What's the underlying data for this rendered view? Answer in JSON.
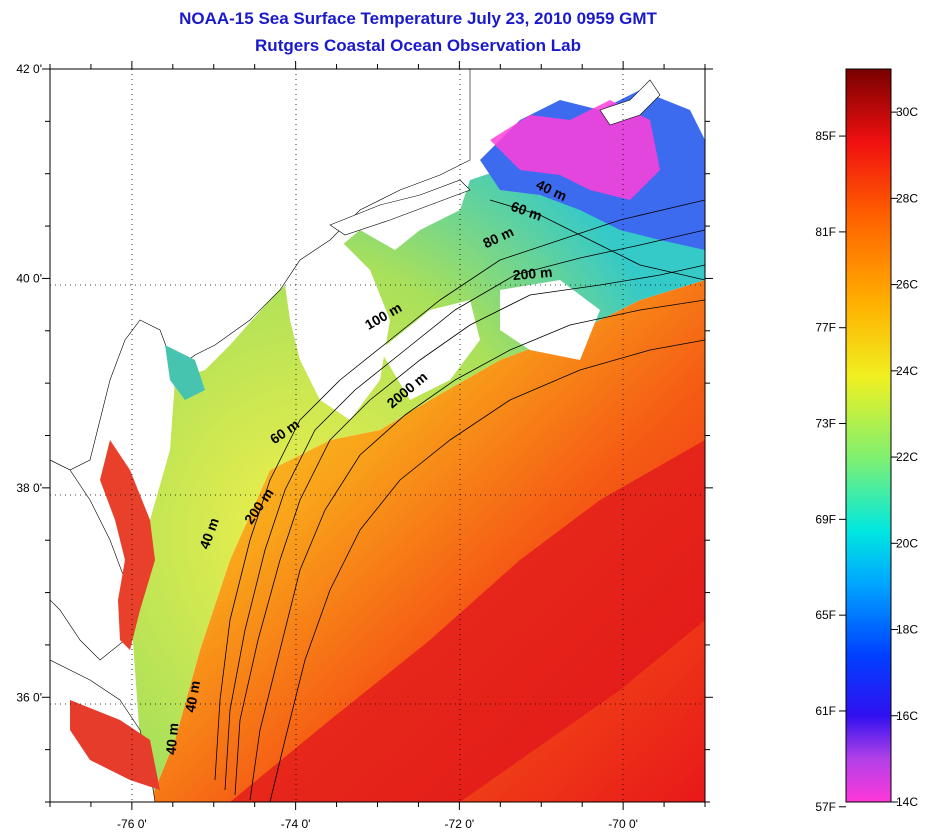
{
  "title": {
    "line1": "NOAA-15 Sea Surface Temperature July 23, 2010 0959 GMT",
    "line2": "Rutgers Coastal Ocean Observation Lab"
  },
  "map": {
    "lon_range": [
      -77,
      -69
    ],
    "lat_range": [
      35,
      42
    ],
    "x_ticks": [
      {
        "value": -76,
        "label": "-76 0'"
      },
      {
        "value": -74,
        "label": "-74 0'"
      },
      {
        "value": -72,
        "label": "-72 0'"
      },
      {
        "value": -70,
        "label": "-70 0'"
      }
    ],
    "y_ticks": [
      {
        "value": 42,
        "label": "42 0'"
      },
      {
        "value": 40,
        "label": "40 0'"
      },
      {
        "value": 38,
        "label": "38 0'"
      },
      {
        "value": 36,
        "label": "36 0'"
      }
    ],
    "grid": "dotted",
    "contour_labels": [
      {
        "text": "40 m",
        "lon": -70.9,
        "lat": 40.8,
        "angle": 25
      },
      {
        "text": "60 m",
        "lon": -71.2,
        "lat": 40.6,
        "angle": 20
      },
      {
        "text": "80 m",
        "lon": -71.5,
        "lat": 40.35,
        "angle": -25
      },
      {
        "text": "200 m",
        "lon": -71.1,
        "lat": 40.0,
        "angle": -5
      },
      {
        "text": "100 m",
        "lon": -72.9,
        "lat": 39.6,
        "angle": -30
      },
      {
        "text": "2000 m",
        "lon": -72.6,
        "lat": 38.9,
        "angle": -40
      },
      {
        "text": "60 m",
        "lon": -74.1,
        "lat": 38.5,
        "angle": -35
      },
      {
        "text": "200 m",
        "lon": -74.4,
        "lat": 37.8,
        "angle": -55
      },
      {
        "text": "40 m",
        "lon": -75.0,
        "lat": 37.55,
        "angle": -70
      },
      {
        "text": "40 m",
        "lon": -75.2,
        "lat": 36.0,
        "angle": -80
      },
      {
        "text": "40 m",
        "lon": -75.45,
        "lat": 35.6,
        "angle": -85
      }
    ]
  },
  "colorbar": {
    "fahrenheit_labels": [
      {
        "value": 85,
        "label": "85F"
      },
      {
        "value": 81,
        "label": "81F"
      },
      {
        "value": 77,
        "label": "77F"
      },
      {
        "value": 73,
        "label": "73F"
      },
      {
        "value": 69,
        "label": "69F"
      },
      {
        "value": 65,
        "label": "65F"
      },
      {
        "value": 61,
        "label": "61F"
      },
      {
        "value": 57,
        "label": "57F"
      }
    ],
    "celsius_labels": [
      {
        "value": 30,
        "label": "30C"
      },
      {
        "value": 28,
        "label": "28C"
      },
      {
        "value": 26,
        "label": "26C"
      },
      {
        "value": 24,
        "label": "24C"
      },
      {
        "value": 22,
        "label": "22C"
      },
      {
        "value": 20,
        "label": "20C"
      },
      {
        "value": 18,
        "label": "18C"
      },
      {
        "value": 16,
        "label": "16C"
      },
      {
        "value": 14,
        "label": "14C"
      }
    ],
    "range_c": [
      14,
      31
    ]
  }
}
